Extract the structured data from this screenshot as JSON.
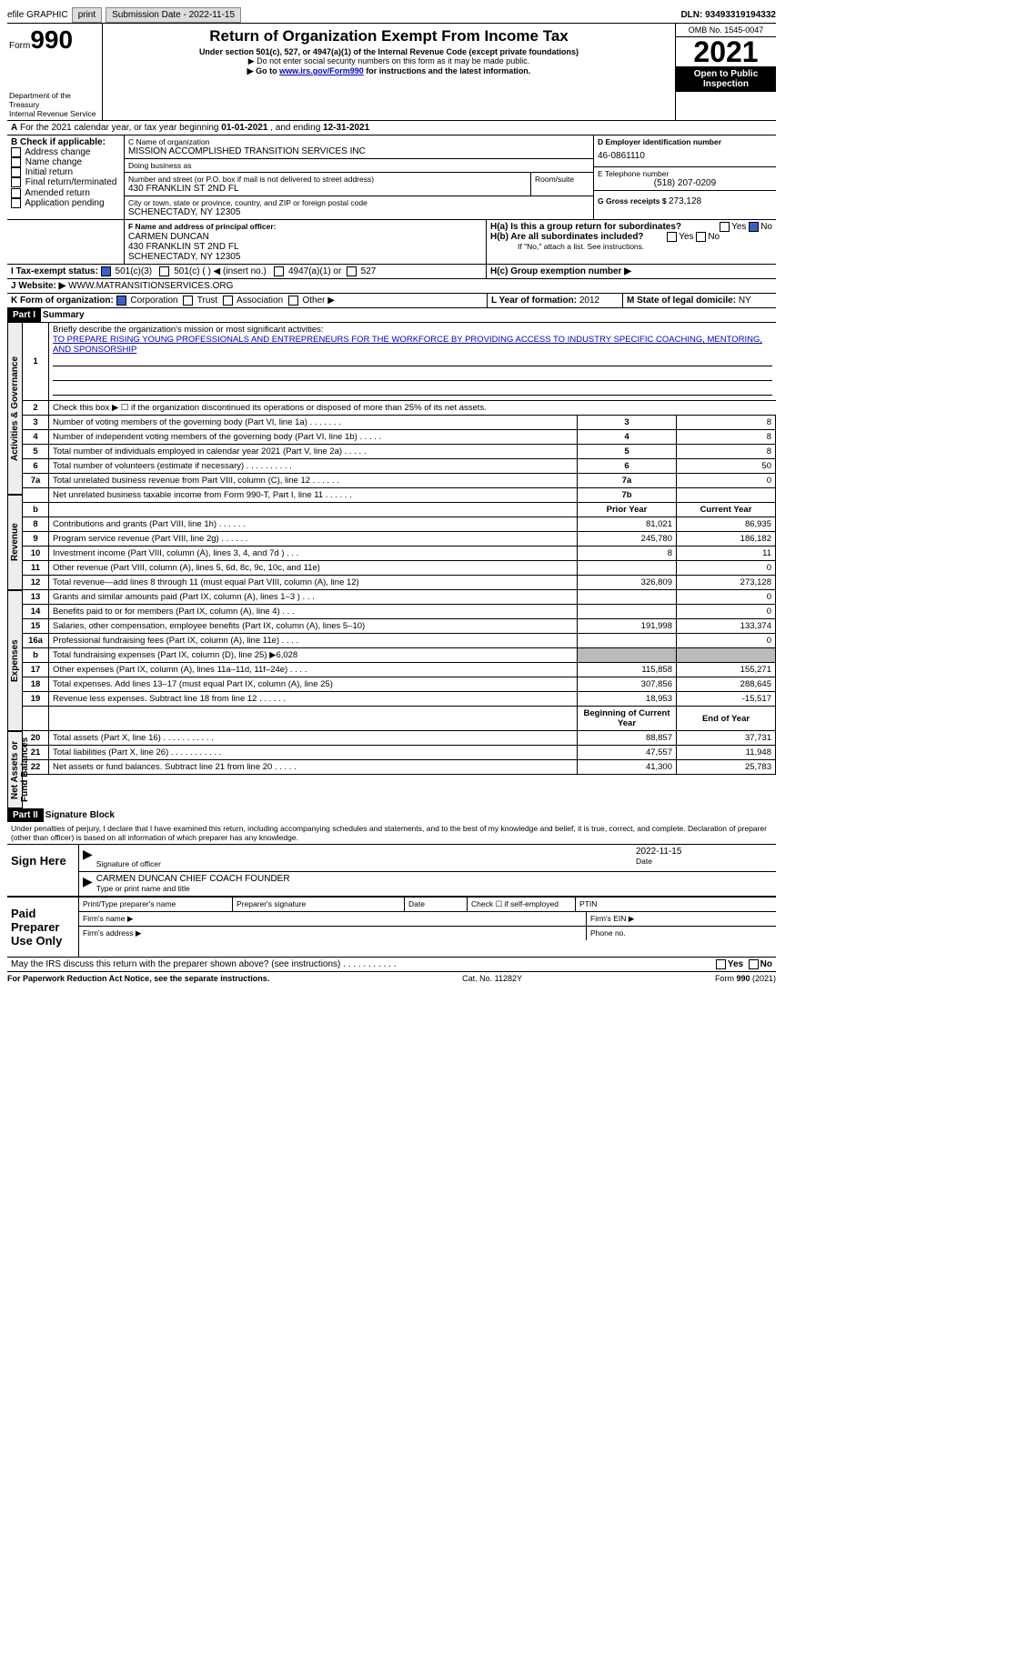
{
  "topbar": {
    "efile": "efile GRAPHIC",
    "print": "print",
    "subdate_label": "Submission Date - ",
    "subdate": "2022-11-15",
    "dln_label": "DLN: ",
    "dln": "93493319194332"
  },
  "header": {
    "form_prefix": "Form",
    "form_num": "990",
    "title": "Return of Organization Exempt From Income Tax",
    "subtitle": "Under section 501(c), 527, or 4947(a)(1) of the Internal Revenue Code (except private foundations)",
    "note1": "▶ Do not enter social security numbers on this form as it may be made public.",
    "note2_pre": "▶ Go to ",
    "note2_link": "www.irs.gov/Form990",
    "note2_post": " for instructions and the latest information.",
    "dept": "Department of the Treasury",
    "irs": "Internal Revenue Service",
    "omb": "OMB No. 1545-0047",
    "year": "2021",
    "open": "Open to Public Inspection"
  },
  "periodA": {
    "text": "For the 2021 calendar year, or tax year beginning ",
    "begin": "01-01-2021",
    "mid": " , and ending ",
    "end": "12-31-2021"
  },
  "boxB": {
    "label": "B Check if applicable:",
    "items": [
      "Address change",
      "Name change",
      "Initial return",
      "Final return/terminated",
      "Amended return",
      "Application pending"
    ]
  },
  "boxC": {
    "name_label": "C Name of organization",
    "name": "MISSION ACCOMPLISHED TRANSITION SERVICES INC",
    "dba_label": "Doing business as",
    "dba": "",
    "street_label": "Number and street (or P.O. box if mail is not delivered to street address)",
    "room_label": "Room/suite",
    "street": "430 FRANKLIN ST 2ND FL",
    "city_label": "City or town, state or province, country, and ZIP or foreign postal code",
    "city": "SCHENECTADY, NY  12305"
  },
  "boxD": {
    "label": "D Employer identification number",
    "ein": "46-0861110"
  },
  "boxE": {
    "label": "E Telephone number",
    "phone": "(518) 207-0209"
  },
  "boxG": {
    "label": "G Gross receipts $ ",
    "val": "273,128"
  },
  "boxF": {
    "label": "F  Name and address of principal officer:",
    "name": "CARMEN DUNCAN",
    "addr1": "430 FRANKLIN ST 2ND FL",
    "addr2": "SCHENECTADY, NY  12305"
  },
  "boxH": {
    "ha": "H(a)  Is this a group return for subordinates?",
    "ha_no": true,
    "hb": "H(b)  Are all subordinates included?",
    "hb_note": "If \"No,\" attach a list. See instructions.",
    "hc": "H(c)  Group exemption number ▶"
  },
  "boxI": {
    "label": "I  Tax-exempt status:",
    "c501c3": "501(c)(3)",
    "c501c": "501(c) (  ) ◀ (insert no.)",
    "c4947": "4947(a)(1) or",
    "c527": "527"
  },
  "boxJ": {
    "label": "J  Website: ▶  ",
    "val": "WWW.MATRANSITIONSERVICES.ORG"
  },
  "boxK": {
    "label": "K Form of organization:",
    "corp": "Corporation",
    "trust": "Trust",
    "assoc": "Association",
    "other": "Other ▶"
  },
  "boxL": {
    "label": "L Year of formation: ",
    "val": "2012"
  },
  "boxM": {
    "label": "M State of legal domicile: ",
    "val": "NY"
  },
  "part1": {
    "hdr": "Part I",
    "title": "Summary",
    "l1": "Briefly describe the organization's mission or most significant activities:",
    "l1_text": "TO PREPARE RISING YOUNG PROFESSIONALS AND ENTREPRENEURS FOR THE WORKFORCE BY PROVIDING ACCESS TO INDUSTRY SPECIFIC COACHING, MENTORING, AND SPONSORSHIP",
    "l2": "Check this box ▶ ☐ if the organization discontinued its operations or disposed of more than 25% of its net assets.",
    "groups": {
      "ag": "Activities & Governance",
      "rev": "Revenue",
      "exp": "Expenses",
      "na": "Net Assets or Fund Balances"
    },
    "rows_ag": [
      {
        "n": "3",
        "d": "Number of voting members of the governing body (Part VI, line 1a)   .    .    .    .    .    .    .",
        "b": "3",
        "v": "8"
      },
      {
        "n": "4",
        "d": "Number of independent voting members of the governing body (Part VI, line 1b)   .    .    .    .    .",
        "b": "4",
        "v": "8"
      },
      {
        "n": "5",
        "d": "Total number of individuals employed in calendar year 2021 (Part V, line 2a)   .    .    .    .    .",
        "b": "5",
        "v": "8"
      },
      {
        "n": "6",
        "d": "Total number of volunteers (estimate if necessary)    .    .    .    .    .    .    .    .    .    .",
        "b": "6",
        "v": "50"
      },
      {
        "n": "7a",
        "d": "Total unrelated business revenue from Part VIII, column (C), line 12    .    .    .    .    .    .",
        "b": "7a",
        "v": "0"
      },
      {
        "n": "",
        "d": "Net unrelated business taxable income from Form 990-T, Part I, line 11   .    .    .    .    .    .",
        "b": "7b",
        "v": ""
      }
    ],
    "col_hdr": {
      "b": "b",
      "py": "Prior Year",
      "cy": "Current Year"
    },
    "rows_rev": [
      {
        "n": "8",
        "d": "Contributions and grants (Part VIII, line 1h)   .    .    .    .    .    .",
        "py": "81,021",
        "cy": "86,935"
      },
      {
        "n": "9",
        "d": "Program service revenue (Part VIII, line 2g)   .    .    .    .    .    .",
        "py": "245,780",
        "cy": "186,182"
      },
      {
        "n": "10",
        "d": "Investment income (Part VIII, column (A), lines 3, 4, and 7d )   .    .    .",
        "py": "8",
        "cy": "11"
      },
      {
        "n": "11",
        "d": "Other revenue (Part VIII, column (A), lines 5, 6d, 8c, 9c, 10c, and 11e)",
        "py": "",
        "cy": "0"
      },
      {
        "n": "12",
        "d": "Total revenue—add lines 8 through 11 (must equal Part VIII, column (A), line 12)",
        "py": "326,809",
        "cy": "273,128"
      }
    ],
    "rows_exp": [
      {
        "n": "13",
        "d": "Grants and similar amounts paid (Part IX, column (A), lines 1–3 )   .    .    .",
        "py": "",
        "cy": "0"
      },
      {
        "n": "14",
        "d": "Benefits paid to or for members (Part IX, column (A), line 4)   .    .    .",
        "py": "",
        "cy": "0"
      },
      {
        "n": "15",
        "d": "Salaries, other compensation, employee benefits (Part IX, column (A), lines 5–10)",
        "py": "191,998",
        "cy": "133,374"
      },
      {
        "n": "16a",
        "d": "Professional fundraising fees (Part IX, column (A), line 11e)   .    .    .    .",
        "py": "",
        "cy": "0"
      },
      {
        "n": "b",
        "d": "Total fundraising expenses (Part IX, column (D), line 25) ▶6,028",
        "shade": true
      },
      {
        "n": "17",
        "d": "Other expenses (Part IX, column (A), lines 11a–11d, 11f–24e)   .    .    .    .",
        "py": "115,858",
        "cy": "155,271"
      },
      {
        "n": "18",
        "d": "Total expenses. Add lines 13–17 (must equal Part IX, column (A), line 25)",
        "py": "307,856",
        "cy": "288,645"
      },
      {
        "n": "19",
        "d": "Revenue less expenses. Subtract line 18 from line 12   .    .    .    .    .    .",
        "py": "18,953",
        "cy": "-15,517"
      }
    ],
    "na_hdr": {
      "py": "Beginning of Current Year",
      "cy": "End of Year"
    },
    "rows_na": [
      {
        "n": "20",
        "d": "Total assets (Part X, line 16)   .    .    .    .    .    .    .    .    .    .    .",
        "py": "88,857",
        "cy": "37,731"
      },
      {
        "n": "21",
        "d": "Total liabilities (Part X, line 26)   .    .    .    .    .    .    .    .    .    .    .",
        "py": "47,557",
        "cy": "11,948"
      },
      {
        "n": "22",
        "d": "Net assets or fund balances. Subtract line 21 from line 20   .    .    .    .    .",
        "py": "41,300",
        "cy": "25,783"
      }
    ]
  },
  "part2": {
    "hdr": "Part II",
    "title": "Signature Block",
    "decl": "Under penalties of perjury, I declare that I have examined this return, including accompanying schedules and statements, and to the best of my knowledge and belief, it is true, correct, and complete. Declaration of preparer (other than officer) is based on all information of which preparer has any knowledge.",
    "sign_here": "Sign Here",
    "sig_officer": "Signature of officer",
    "sig_date": "Date",
    "sig_date_val": "2022-11-15",
    "printed": "CARMEN DUNCAN  CHIEF COACH FOUNDER",
    "printed_label": "Type or print name and title",
    "paid": "Paid Preparer Use Only",
    "pp_name": "Print/Type preparer's name",
    "pp_sig": "Preparer's signature",
    "pp_date": "Date",
    "pp_check": "Check ☐ if self-employed",
    "pp_ptin": "PTIN",
    "firm_name": "Firm's name   ▶",
    "firm_ein": "Firm's EIN ▶",
    "firm_addr": "Firm's address ▶",
    "firm_phone": "Phone no.",
    "discuss": "May the IRS discuss this return with the preparer shown above? (see instructions)    .    .    .    .    .    .    .    .    .    .    .",
    "yes": "Yes",
    "no": "No"
  },
  "footer": {
    "left": "For Paperwork Reduction Act Notice, see the separate instructions.",
    "mid": "Cat. No. 11282Y",
    "right": "Form 990 (2021)"
  }
}
